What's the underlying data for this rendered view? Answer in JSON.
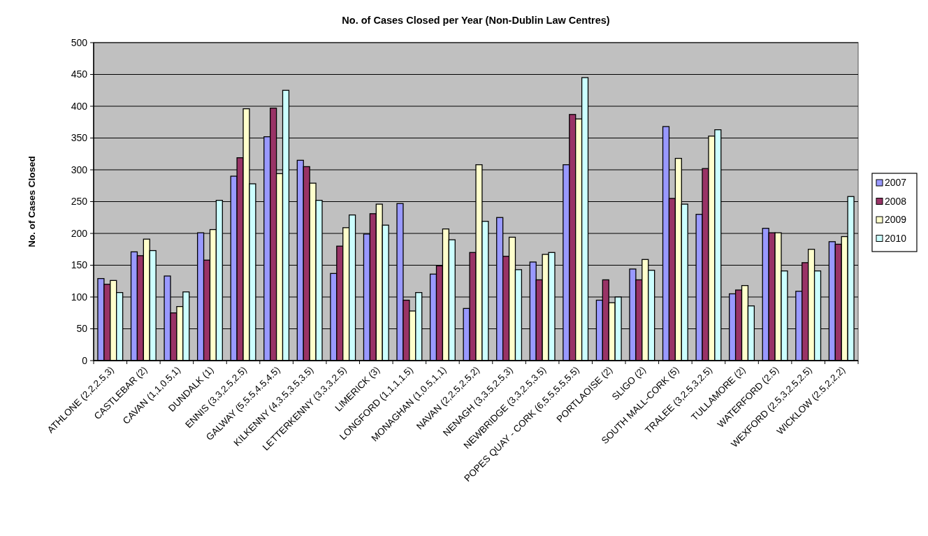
{
  "chart_data": {
    "type": "bar",
    "title": "No. of Cases Closed per Year (Non-Dublin Law Centres)",
    "ylabel": "No. of Cases Closed",
    "categories": [
      "ATHLONE (2,2,2.5,3)",
      "CASTLEBAR (2)",
      "CAVAN (1,1,0.5,1)",
      "DUNDALK (1)",
      "ENNIS (3,3,2.5,2.5)",
      "GALWAY (5,5.5,4.5,4.5)",
      "KILKENNY (4,3.5,3.5,3.5)",
      "LETTERKENNY (3,3,3,2.5)",
      "LIMERICK (3)",
      "LONGFORD (1,1,1,1.5)",
      "MONAGHAN (1,0.5,1,1)",
      "NAVAN (2,2.5,2.5,2)",
      "NENAGH (3,3.5,2.5,3)",
      "NEWBRIDGE (3,3,2.5,3.5)",
      "POPES QUAY - CORK (6,5.5,5.5,5.5)",
      "PORTLAOISE (2)",
      "SLIGO (2)",
      "SOUTH MALL-CORK (5)",
      "TRALEE (3,2.5,3,2.5)",
      "TULLAMORE (2)",
      "WATERFORD (2.5)",
      "WEXFORD (2.5,3,2.5,2.5)",
      "WICKLOW (2.5,2,2,2)"
    ],
    "series": [
      {
        "name": "2007",
        "color": "#9999ff",
        "values": [
          129,
          171,
          133,
          201,
          290,
          352,
          315,
          137,
          199,
          247,
          136,
          82,
          225,
          155,
          308,
          95,
          144,
          368,
          230,
          105,
          208,
          109,
          187
        ]
      },
      {
        "name": "2008",
        "color": "#993366",
        "values": [
          120,
          165,
          75,
          158,
          319,
          397,
          305,
          180,
          231,
          95,
          149,
          170,
          164,
          127,
          387,
          127,
          127,
          255,
          302,
          111,
          201,
          154,
          183
        ]
      },
      {
        "name": "2009",
        "color": "#ffffcc",
        "values": [
          126,
          191,
          85,
          206,
          396,
          294,
          279,
          209,
          246,
          78,
          207,
          308,
          194,
          167,
          380,
          91,
          159,
          318,
          353,
          118,
          201,
          175,
          195
        ]
      },
      {
        "name": "2010",
        "color": "#ccffff",
        "values": [
          107,
          173,
          108,
          252,
          278,
          425,
          252,
          229,
          213,
          107,
          190,
          219,
          143,
          170,
          445,
          100,
          142,
          246,
          363,
          86,
          141,
          141,
          258
        ]
      }
    ],
    "ylim": [
      0,
      500
    ],
    "yticks": [
      0,
      50,
      100,
      150,
      200,
      250,
      300,
      350,
      400,
      450,
      500
    ],
    "grid": "y",
    "legend": "right"
  }
}
